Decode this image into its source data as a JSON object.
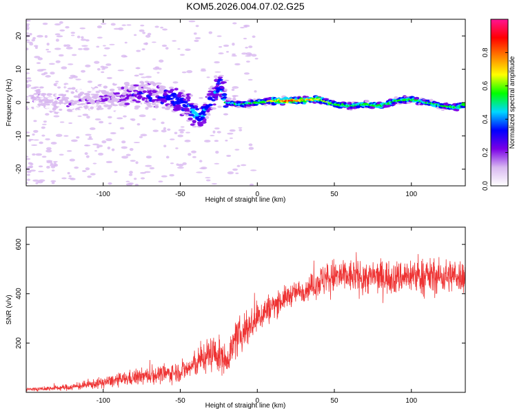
{
  "title": "KOM5.2026.004.07.02.G25",
  "chart_data": [
    {
      "type": "heatmap",
      "xlabel": "Height of straight line (km)",
      "ylabel": "Frequency (Hz)",
      "xlim": [
        -150,
        135
      ],
      "ylim": [
        -25,
        25
      ],
      "xticks": [
        -100,
        -50,
        0,
        50,
        100
      ],
      "yticks": [
        -20,
        -10,
        0,
        10,
        20
      ],
      "colorbar": {
        "label": "Normalized spectral amplitude",
        "ticks": [
          "0.0",
          "0.2",
          "0.4",
          "0.6",
          "0.8"
        ],
        "tick_values": [
          0.0,
          0.2,
          0.4,
          0.6,
          0.8
        ],
        "range": [
          0,
          1
        ],
        "colors": [
          "#ffffff",
          "#d8b8f0",
          "#7a00e6",
          "#0000ff",
          "#00d8ff",
          "#00ff00",
          "#ffff00",
          "#ff8000",
          "#ff0000",
          "#ff1493"
        ]
      },
      "ridge": {
        "x": [
          -130,
          -110,
          -90,
          -75,
          -60,
          -50,
          -45,
          -40,
          -36,
          -32,
          -28,
          -24,
          -20,
          -10,
          0,
          10,
          20,
          30,
          40,
          50,
          60,
          70,
          80,
          90,
          100,
          110,
          120,
          130,
          135
        ],
        "f": [
          0.5,
          0.5,
          2,
          2.5,
          1.5,
          0.5,
          -1,
          -3.5,
          -4,
          -1,
          2,
          5,
          0,
          -0.5,
          0,
          0.5,
          0.5,
          0.7,
          1,
          -0.5,
          -1,
          -0.5,
          -1,
          0.5,
          1,
          0,
          -1,
          -1.5,
          -0.5
        ],
        "amplitude": [
          0.1,
          0.12,
          0.18,
          0.22,
          0.3,
          0.35,
          0.4,
          0.42,
          0.38,
          0.35,
          0.35,
          0.35,
          0.4,
          0.45,
          0.5,
          0.6,
          0.85,
          0.7,
          0.65,
          0.55,
          0.5,
          0.55,
          0.55,
          0.5,
          0.55,
          0.5,
          0.5,
          0.55,
          0.5
        ]
      }
    },
    {
      "type": "line",
      "xlabel": "Height of straight line (km)",
      "ylabel": "SNR (v/v)",
      "xlim": [
        -150,
        135
      ],
      "ylim": [
        0,
        670
      ],
      "xticks": [
        -100,
        -50,
        0,
        50,
        100
      ],
      "yticks": [
        200,
        400,
        600
      ],
      "color": "#ee3333",
      "series": [
        {
          "name": "SNR",
          "x": [
            -150,
            -140,
            -130,
            -120,
            -110,
            -100,
            -90,
            -80,
            -70,
            -60,
            -50,
            -45,
            -40,
            -35,
            -30,
            -25,
            -20,
            -15,
            -10,
            -5,
            0,
            5,
            10,
            15,
            20,
            25,
            30,
            35,
            40,
            45,
            50,
            60,
            70,
            80,
            90,
            100,
            110,
            120,
            130,
            135
          ],
          "mean": [
            12,
            14,
            18,
            22,
            30,
            40,
            50,
            60,
            68,
            75,
            85,
            95,
            115,
            140,
            160,
            150,
            130,
            200,
            240,
            270,
            300,
            330,
            350,
            370,
            390,
            405,
            415,
            430,
            450,
            460,
            470,
            470,
            465,
            470,
            465,
            475,
            470,
            470,
            475,
            470
          ],
          "spread": [
            10,
            10,
            12,
            15,
            20,
            25,
            30,
            35,
            38,
            40,
            45,
            50,
            60,
            70,
            80,
            80,
            60,
            80,
            80,
            80,
            80,
            70,
            60,
            55,
            50,
            50,
            50,
            55,
            70,
            80,
            80,
            75,
            75,
            75,
            75,
            80,
            80,
            75,
            75,
            75
          ]
        }
      ]
    }
  ]
}
